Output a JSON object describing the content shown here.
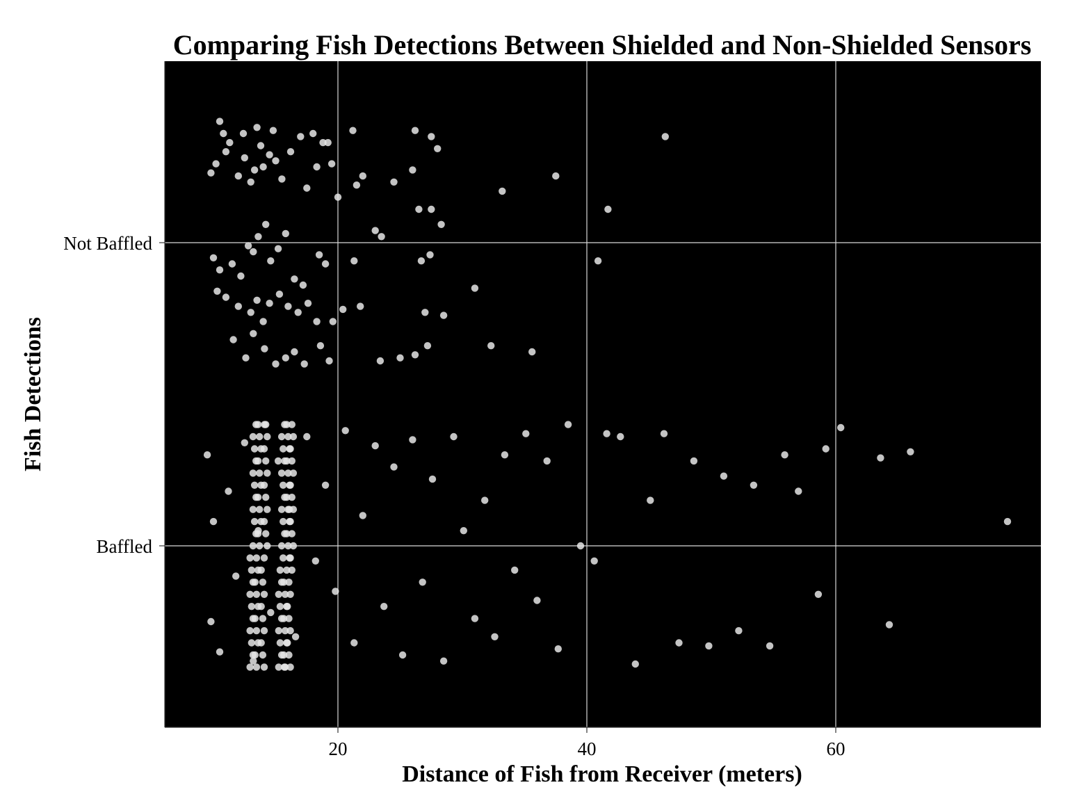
{
  "chart_data": {
    "type": "scatter",
    "title": "Comparing Fish Detections Between Shielded and Non-Shielded Sensors",
    "xlabel": "Distance of Fish from Receiver (meters)",
    "ylabel": "Fish Detections",
    "xlim": [
      6,
      76.5
    ],
    "x_ticks": [
      20,
      40,
      60
    ],
    "categories": [
      "Baffled",
      "Not Baffled"
    ],
    "jitter": "vertical jitter within each category (approx ±0.4)",
    "grid": true,
    "panel_background": "#000000",
    "point_color": "#e6e6e6",
    "series": [
      {
        "category": "Not Baffled",
        "x_values": [
          10.5,
          10.8,
          11.3,
          12.4,
          13.5,
          14.8,
          17.0,
          18.0,
          19.2,
          21.2,
          26.2,
          27.5,
          28.0,
          46.3,
          9.8,
          10.2,
          11.0,
          12.0,
          12.5,
          13.0,
          13.3,
          13.8,
          14.0,
          14.5,
          15.0,
          15.5,
          16.2,
          17.5,
          18.3,
          18.8,
          19.5,
          20.0,
          21.5,
          22.0,
          23.0,
          23.5,
          24.5,
          26.0,
          26.5,
          27.5,
          28.3,
          33.2,
          37.5,
          41.7,
          10.0,
          10.5,
          11.5,
          12.2,
          12.8,
          13.2,
          13.6,
          14.2,
          14.6,
          15.2,
          15.8,
          16.5,
          17.2,
          18.5,
          19.0,
          21.3,
          26.7,
          27.4,
          31.0,
          40.9,
          10.3,
          11.0,
          12.0,
          13.0,
          13.5,
          14.0,
          14.5,
          15.3,
          16.0,
          16.8,
          17.6,
          18.3,
          19.6,
          20.4,
          21.8,
          27.0,
          28.5,
          32.3,
          35.6,
          11.6,
          12.6,
          13.2,
          14.1,
          15.0,
          15.8,
          16.5,
          17.3,
          18.6,
          19.3,
          23.4,
          25.0,
          26.2,
          27.2
        ],
        "jitter_offsets": [
          0.4,
          0.36,
          0.33,
          0.36,
          0.38,
          0.37,
          0.35,
          0.36,
          0.33,
          0.37,
          0.37,
          0.35,
          0.31,
          0.35,
          0.23,
          0.26,
          0.3,
          0.22,
          0.28,
          0.2,
          0.24,
          0.32,
          0.25,
          0.29,
          0.27,
          0.21,
          0.3,
          0.18,
          0.25,
          0.33,
          0.26,
          0.15,
          0.19,
          0.22,
          0.04,
          0.02,
          0.2,
          0.24,
          0.11,
          0.11,
          0.06,
          0.17,
          0.22,
          0.11,
          -0.05,
          -0.09,
          -0.07,
          -0.11,
          -0.01,
          -0.03,
          0.02,
          0.06,
          -0.06,
          -0.02,
          0.03,
          -0.12,
          -0.14,
          -0.04,
          -0.07,
          -0.06,
          -0.06,
          -0.04,
          -0.15,
          -0.06,
          -0.16,
          -0.18,
          -0.21,
          -0.23,
          -0.19,
          -0.26,
          -0.2,
          -0.17,
          -0.21,
          -0.23,
          -0.2,
          -0.26,
          -0.26,
          -0.22,
          -0.21,
          -0.23,
          -0.24,
          -0.34,
          -0.36,
          -0.32,
          -0.38,
          -0.3,
          -0.35,
          -0.4,
          -0.38,
          -0.36,
          -0.4,
          -0.34,
          -0.39,
          -0.39,
          -0.38,
          -0.37,
          -0.34
        ]
      },
      {
        "category": "Baffled",
        "x_values": [
          9.5,
          9.8,
          10.0,
          10.5,
          11.2,
          11.8,
          12.5,
          13.2,
          13.6,
          14.1,
          14.6,
          15.2,
          15.7,
          16.1,
          16.6,
          17.5,
          18.2,
          19.0,
          19.8,
          20.6,
          21.3,
          22.0,
          23.0,
          23.7,
          24.5,
          25.2,
          26.0,
          26.8,
          27.6,
          28.5,
          29.3,
          30.1,
          31.0,
          31.8,
          32.6,
          33.4,
          34.2,
          35.1,
          36.0,
          36.8,
          37.7,
          38.5,
          39.5,
          40.6,
          41.6,
          42.7,
          43.9,
          45.1,
          46.2,
          47.4,
          48.6,
          49.8,
          51.0,
          52.2,
          53.4,
          54.7,
          55.9,
          57.0,
          58.6,
          59.2,
          60.4,
          63.6,
          64.3,
          66.0,
          73.8
        ],
        "jitter_offsets": [
          0.3,
          -0.25,
          0.08,
          -0.35,
          0.18,
          -0.1,
          0.34,
          -0.38,
          0.05,
          0.4,
          -0.22,
          0.28,
          -0.4,
          0.12,
          -0.3,
          0.36,
          -0.05,
          0.2,
          -0.15,
          0.38,
          -0.32,
          0.1,
          0.33,
          -0.2,
          0.26,
          -0.36,
          0.35,
          -0.12,
          0.22,
          -0.38,
          0.36,
          0.05,
          -0.24,
          0.15,
          -0.3,
          0.3,
          -0.08,
          0.37,
          -0.18,
          0.28,
          -0.34,
          0.4,
          0.0,
          -0.05,
          0.37,
          0.36,
          -0.39,
          0.15,
          0.37,
          -0.32,
          0.28,
          -0.33,
          0.23,
          -0.28,
          0.2,
          -0.33,
          0.3,
          0.18,
          -0.16,
          0.32,
          0.39,
          0.29,
          -0.26,
          0.31,
          0.08
        ]
      }
    ]
  }
}
